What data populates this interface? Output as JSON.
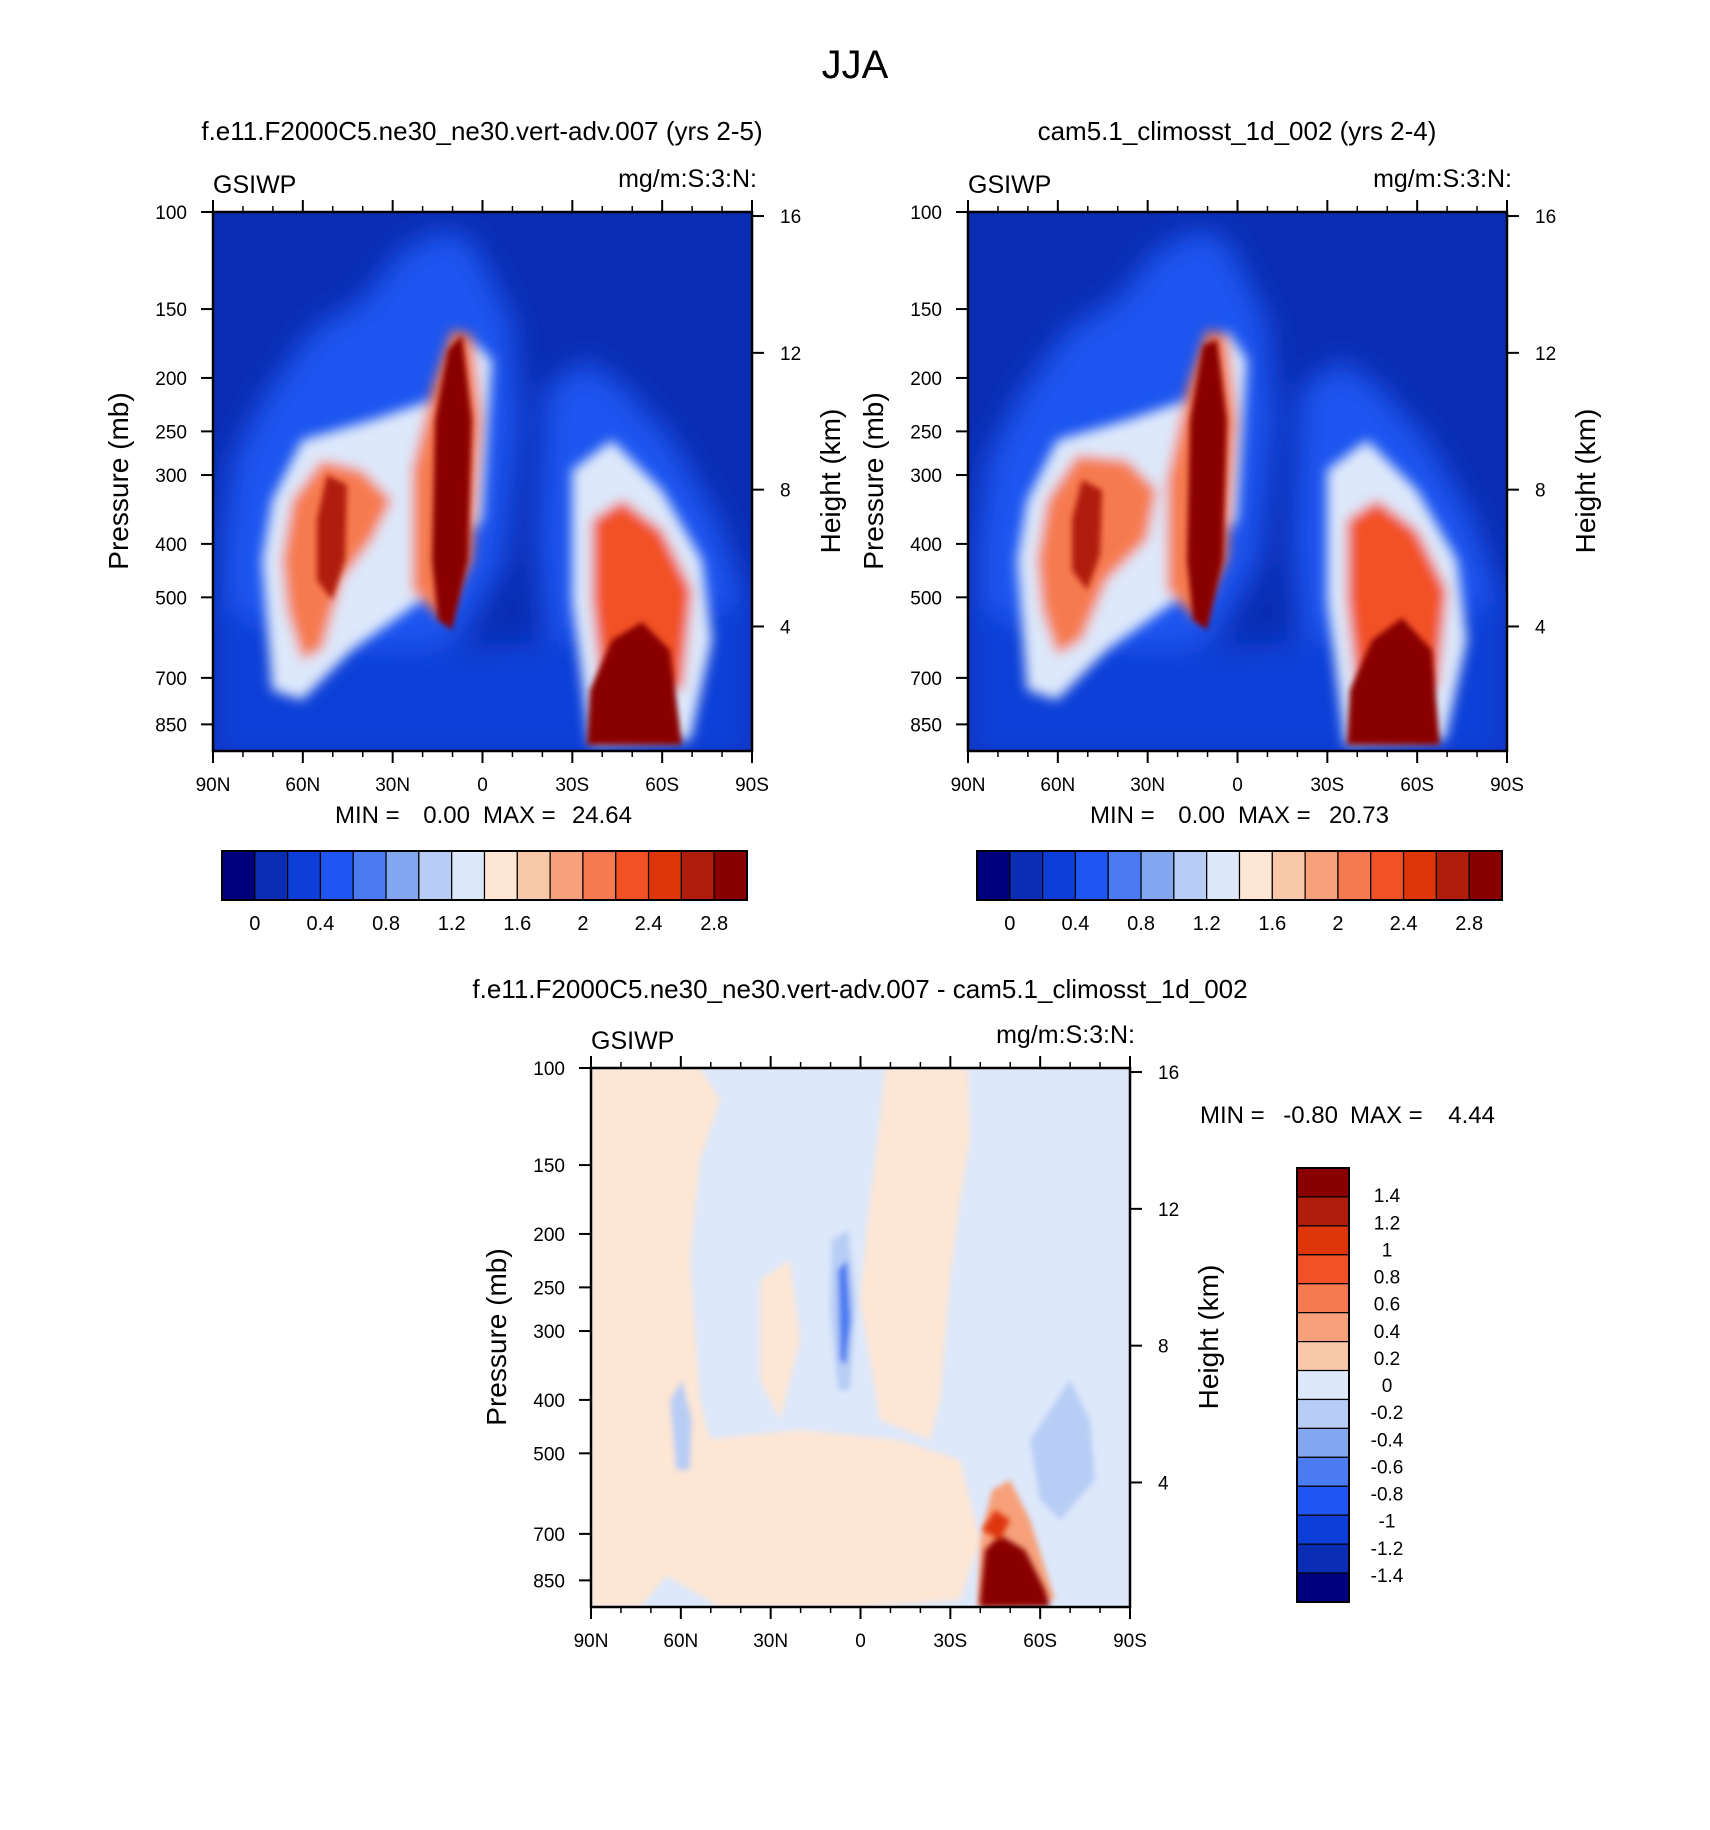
{
  "figure_title": "JJA",
  "chart_data": [
    {
      "id": "panel1",
      "type": "heatmap",
      "title": "f.e11.F2000C5.ne30_ne30.vert-adv.007 (yrs 2-5)",
      "variable": "GSIWP",
      "units": "mg/m:S:3:N:",
      "ylabel_left": "Pressure (mb)",
      "ylabel_right": "Height (km)",
      "x_ticks": [
        "90N",
        "60N",
        "30N",
        "0",
        "30S",
        "60S",
        "90S"
      ],
      "y_ticks": [
        "100",
        "150",
        "200",
        "250",
        "300",
        "400",
        "500",
        "700",
        "850"
      ],
      "y_ticks_right": [
        "16",
        "12",
        "8",
        "4"
      ],
      "stats": {
        "min_label": "MIN =",
        "min": "0.00",
        "max_label": "MAX =",
        "max": "24.64"
      },
      "colorbar": {
        "orientation": "horizontal",
        "labels": [
          "0",
          "0.4",
          "0.8",
          "1.2",
          "1.6",
          "2",
          "2.4",
          "2.8"
        ],
        "colors": [
          "#00007f",
          "#0a2db4",
          "#0d3fd8",
          "#1f55f0",
          "#4a7bf2",
          "#83a6f0",
          "#b8cdf5",
          "#dde8fb",
          "#fde6d4",
          "#f9c8a8",
          "#f7a07a",
          "#f67a50",
          "#f25125",
          "#de3509",
          "#b01d0a",
          "#8a0000"
        ]
      }
    },
    {
      "id": "panel2",
      "type": "heatmap",
      "title": "cam5.1_climosst_1d_002 (yrs 2-4)",
      "variable": "GSIWP",
      "units": "mg/m:S:3:N:",
      "ylabel_left": "Pressure (mb)",
      "ylabel_right": "Height (km)",
      "x_ticks": [
        "90N",
        "60N",
        "30N",
        "0",
        "30S",
        "60S",
        "90S"
      ],
      "y_ticks": [
        "100",
        "150",
        "200",
        "250",
        "300",
        "400",
        "500",
        "700",
        "850"
      ],
      "y_ticks_right": [
        "16",
        "12",
        "8",
        "4"
      ],
      "stats": {
        "min_label": "MIN =",
        "min": "0.00",
        "max_label": "MAX =",
        "max": "20.73"
      },
      "colorbar": {
        "orientation": "horizontal",
        "labels": [
          "0",
          "0.4",
          "0.8",
          "1.2",
          "1.6",
          "2",
          "2.4",
          "2.8"
        ],
        "colors": [
          "#00007f",
          "#0a2db4",
          "#0d3fd8",
          "#1f55f0",
          "#4a7bf2",
          "#83a6f0",
          "#b8cdf5",
          "#dde8fb",
          "#fde6d4",
          "#f9c8a8",
          "#f7a07a",
          "#f67a50",
          "#f25125",
          "#de3509",
          "#b01d0a",
          "#8a0000"
        ]
      }
    },
    {
      "id": "panel3",
      "type": "heatmap",
      "title": "f.e11.F2000C5.ne30_ne30.vert-adv.007 - cam5.1_climosst_1d_002",
      "variable": "GSIWP",
      "units": "mg/m:S:3:N:",
      "ylabel_left": "Pressure (mb)",
      "ylabel_right": "Height (km)",
      "x_ticks": [
        "90N",
        "60N",
        "30N",
        "0",
        "30S",
        "60S",
        "90S"
      ],
      "y_ticks": [
        "100",
        "150",
        "200",
        "250",
        "300",
        "400",
        "500",
        "700",
        "850"
      ],
      "y_ticks_right": [
        "16",
        "12",
        "8",
        "4"
      ],
      "stats": {
        "min_label": "MIN =",
        "min": "-0.80",
        "max_label": "MAX =",
        "max": "4.44"
      },
      "colorbar": {
        "orientation": "vertical",
        "labels": [
          "1.4",
          "1.2",
          "1",
          "0.8",
          "0.6",
          "0.4",
          "0.2",
          "0",
          "-0.2",
          "-0.4",
          "-0.6",
          "-0.8",
          "-1",
          "-1.2",
          "-1.4"
        ],
        "colors": [
          "#8a0000",
          "#b01d0a",
          "#de3509",
          "#f25125",
          "#f67a50",
          "#f7a07a",
          "#f9c8a8",
          "#fde6d4",
          "#dde8fb",
          "#b8cdf5",
          "#83a6f0",
          "#4a7bf2",
          "#1f55f0",
          "#0d3fd8",
          "#0a2db4",
          "#00007f"
        ]
      }
    }
  ]
}
